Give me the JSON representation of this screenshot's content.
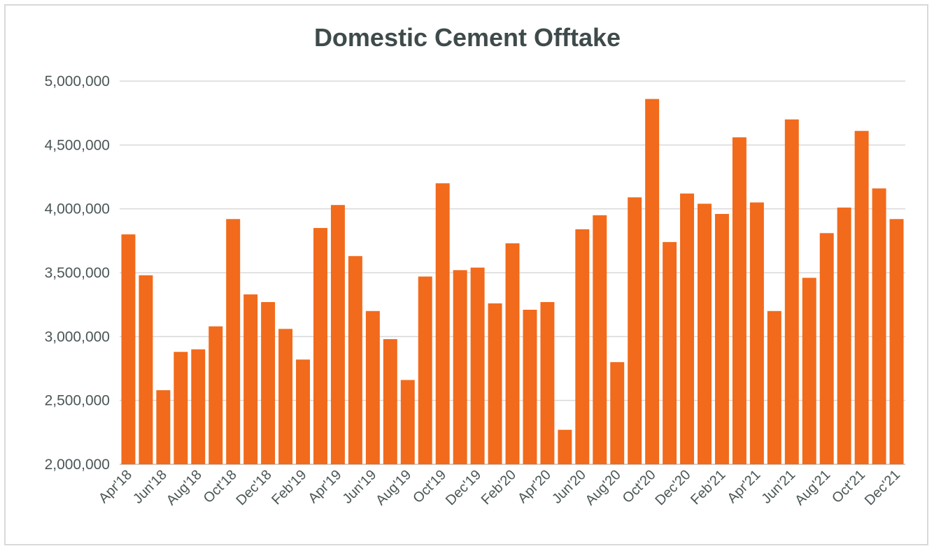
{
  "chart_data": {
    "type": "bar",
    "title": "Domestic Cement Offtake",
    "xlabel": "",
    "ylabel": "",
    "ylim": [
      2000000,
      5000000
    ],
    "yticks": [
      "2,000,000",
      "2,500,000",
      "3,000,000",
      "3,500,000",
      "4,000,000",
      "4,500,000",
      "5,000,000"
    ],
    "grid": true,
    "legend": "none",
    "bar_color": "#f26a1b",
    "categories": [
      "Apr'18",
      "May'18",
      "Jun'18",
      "Jul'18",
      "Aug'18",
      "Sep'18",
      "Oct'18",
      "Nov'18",
      "Dec'18",
      "Jan'19",
      "Feb'19",
      "Mar'19",
      "Apr'19",
      "May'19",
      "Jun'19",
      "Jul'19",
      "Aug'19",
      "Sep'19",
      "Oct'19",
      "Nov'19",
      "Dec'19",
      "Jan'20",
      "Feb'20",
      "Mar'20",
      "Apr'20",
      "May'20",
      "Jun'20",
      "Jul'20",
      "Aug'20",
      "Sep'20",
      "Oct'20",
      "Nov'20",
      "Dec'20",
      "Jan'21",
      "Feb'21",
      "Mar'21",
      "Apr'21",
      "May'21",
      "Jun'21",
      "Jul'21",
      "Aug'21",
      "Sep'21",
      "Oct'21",
      "Nov'21",
      "Dec'21"
    ],
    "shown_tick_labels": [
      "Apr'18",
      "Jun'18",
      "Aug'18",
      "Oct'18",
      "Dec'18",
      "Feb'19",
      "Apr'19",
      "Jun'19",
      "Aug'19",
      "Oct'19",
      "Dec'19",
      "Feb'20",
      "Apr'20",
      "Jun'20",
      "Aug'20",
      "Oct'20",
      "Dec'20",
      "Feb'21",
      "Apr'21",
      "Jun'21",
      "Aug'21",
      "Oct'21",
      "Dec'21"
    ],
    "values": [
      3800000,
      3480000,
      2580000,
      2880000,
      2900000,
      3080000,
      3920000,
      3330000,
      3270000,
      3060000,
      2820000,
      3850000,
      4030000,
      3630000,
      3200000,
      2980000,
      2660000,
      3470000,
      4200000,
      3520000,
      3540000,
      3260000,
      3730000,
      3210000,
      3270000,
      2270000,
      3840000,
      3950000,
      2800000,
      4090000,
      4860000,
      3740000,
      4120000,
      4040000,
      3960000,
      4560000,
      4050000,
      3200000,
      4700000,
      3460000,
      3810000,
      4010000,
      4610000,
      4160000,
      3920000
    ]
  }
}
